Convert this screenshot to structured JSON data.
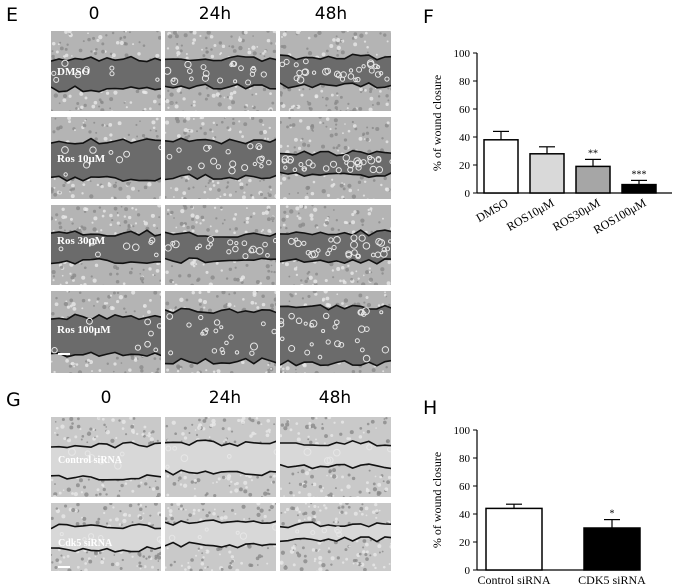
{
  "panels": {
    "E": "E",
    "F": "F",
    "G": "G",
    "H": "H"
  },
  "timepoints_top": [
    "0",
    "24h",
    "48h"
  ],
  "timepoints_bottom": [
    "0",
    "24h",
    "48h"
  ],
  "rows_top": [
    "DMSO",
    "Ros 10μM",
    "Ros 30μM",
    "Ros 100μM"
  ],
  "rows_bottom": [
    "Control siRNA",
    "Cdk5 siRNA"
  ],
  "colors": {
    "micro_dark": "#6b6b6b",
    "micro_light": "#b4b4b4",
    "bar_dmso": "#ffffff",
    "bar_ros10": "#d9d9d9",
    "bar_ros30": "#a6a6a6",
    "bar_ros100": "#000000"
  },
  "chart_data": [
    {
      "type": "bar",
      "title": "",
      "xlabel": "",
      "ylabel": "% of wound closure",
      "ylim": [
        0,
        100
      ],
      "yticks": [
        "0",
        "20",
        "40",
        "60",
        "80",
        "100"
      ],
      "categories": [
        "DMSO",
        "ROS10μM",
        "ROS30μM",
        "ROS100μM"
      ],
      "values": [
        38,
        28,
        19,
        6
      ],
      "errors": [
        6,
        5,
        5,
        3
      ],
      "significance": [
        "",
        "",
        "**",
        "***"
      ]
    },
    {
      "type": "bar",
      "title": "",
      "xlabel": "",
      "ylabel": "% of wound closure",
      "ylim": [
        0,
        100
      ],
      "yticks": [
        "0",
        "20",
        "40",
        "60",
        "80",
        "100"
      ],
      "categories": [
        "Control siRNA",
        "CDK5 siRNA"
      ],
      "values": [
        44,
        30
      ],
      "errors": [
        3,
        6
      ],
      "significance": [
        "",
        "*"
      ]
    }
  ]
}
